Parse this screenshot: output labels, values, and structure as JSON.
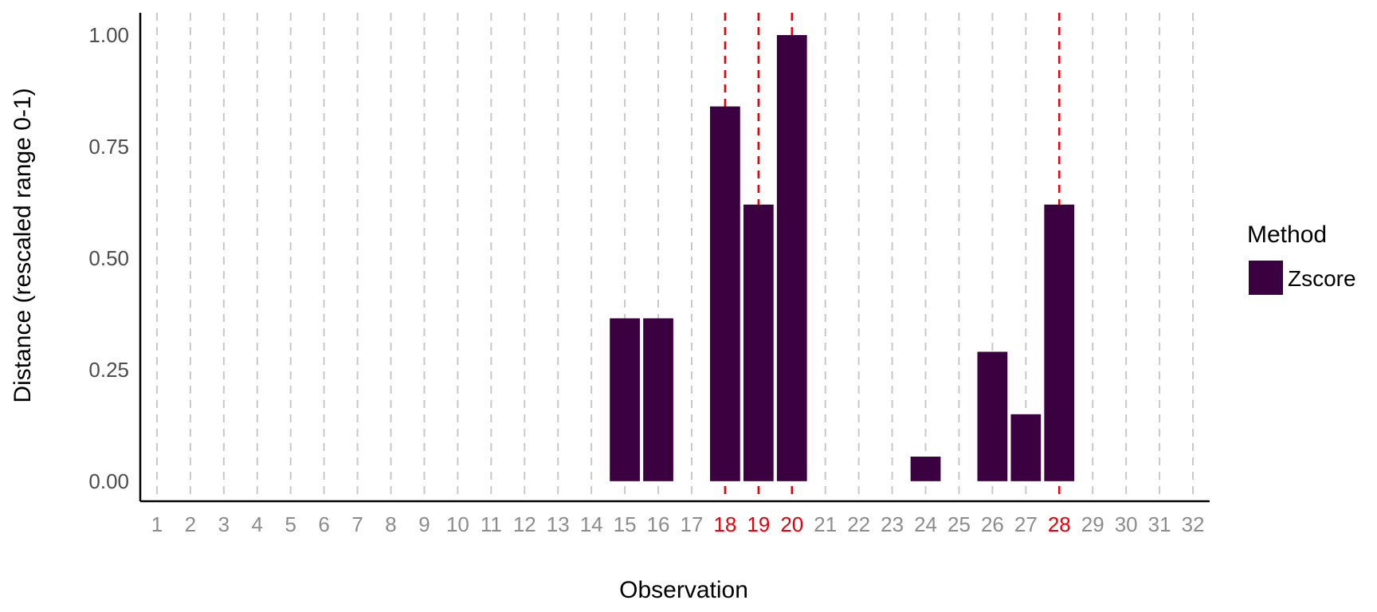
{
  "chart_data": {
    "type": "bar",
    "title": "",
    "xlabel": "Observation",
    "ylabel": "Distance (rescaled range 0-1)",
    "categories": [
      "1",
      "2",
      "3",
      "4",
      "5",
      "6",
      "7",
      "8",
      "9",
      "10",
      "11",
      "12",
      "13",
      "14",
      "15",
      "16",
      "17",
      "18",
      "19",
      "20",
      "21",
      "22",
      "23",
      "24",
      "25",
      "26",
      "27",
      "28",
      "29",
      "30",
      "31",
      "32"
    ],
    "series": [
      {
        "name": "Zscore",
        "color": "#3a003f",
        "values": [
          0,
          0,
          0,
          0,
          0,
          0,
          0,
          0,
          0,
          0,
          0,
          0,
          0,
          0,
          0.365,
          0.365,
          0,
          0.84,
          0.62,
          1.0,
          0,
          0,
          0,
          0.055,
          0,
          0.29,
          0.15,
          0.62,
          0,
          0,
          0,
          0
        ]
      }
    ],
    "yticks": [
      "0.00",
      "0.25",
      "0.50",
      "0.75",
      "1.00"
    ],
    "ylim": [
      -0.045,
      1.05
    ],
    "xlim": [
      0.5,
      32.5
    ],
    "grid": "vertical-dashed",
    "grid_color": "#c8c8c8",
    "highlighted_observations": [
      "18",
      "19",
      "20",
      "28"
    ],
    "highlight_color": "#e8000b",
    "tick_color": "#8c8c8c",
    "legend": {
      "title": "Method",
      "position": "right"
    }
  }
}
